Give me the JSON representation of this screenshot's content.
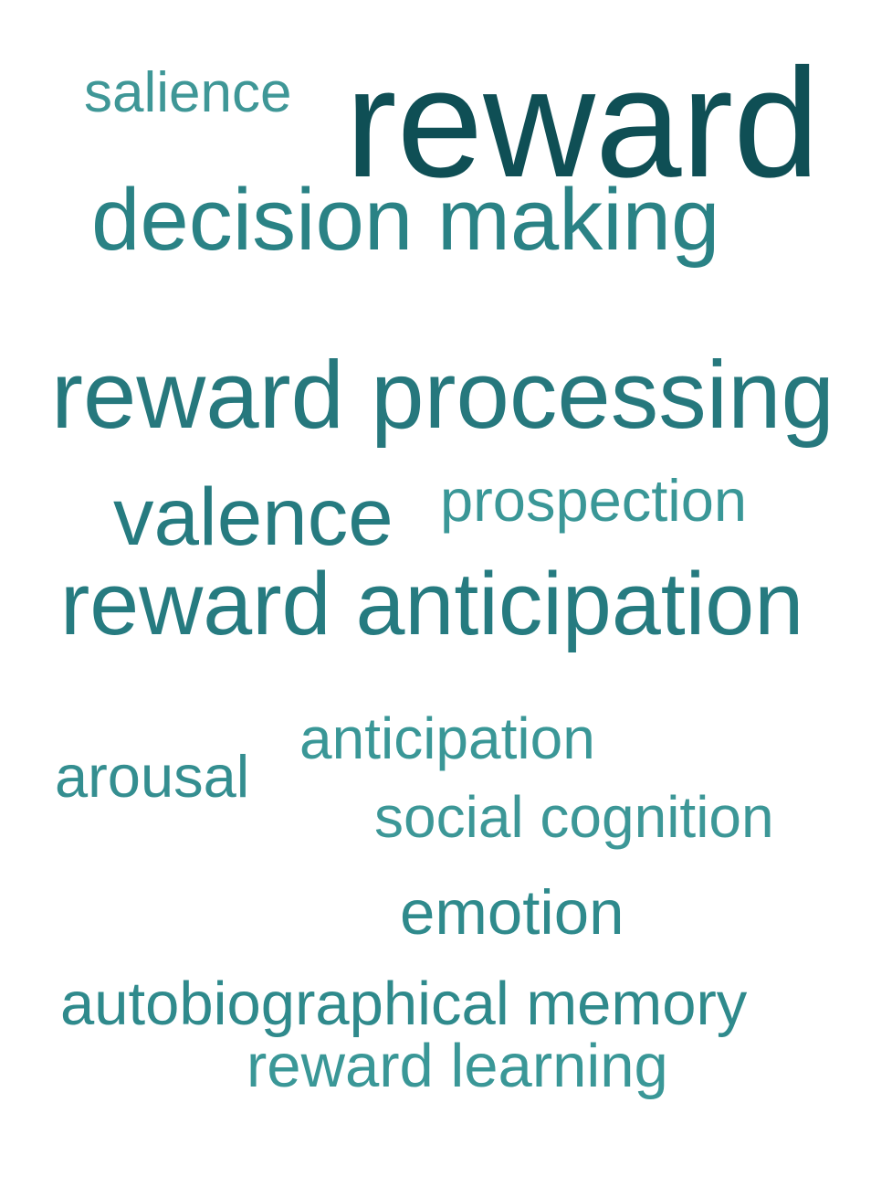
{
  "words": [
    {
      "id": "reward",
      "text": "reward",
      "color": "#0f4f55"
    },
    {
      "id": "salience",
      "text": "salience",
      "color": "#3f9797"
    },
    {
      "id": "decision-making",
      "text": "decision making",
      "color": "#2a8285"
    },
    {
      "id": "reward-processing",
      "text": "reward processing",
      "color": "#26787d"
    },
    {
      "id": "valence",
      "text": "valence",
      "color": "#267b80"
    },
    {
      "id": "prospection",
      "text": "prospection",
      "color": "#3a9797"
    },
    {
      "id": "reward-anticipation",
      "text": "reward anticipation",
      "color": "#267b80"
    },
    {
      "id": "anticipation",
      "text": "anticipation",
      "color": "#3a9797"
    },
    {
      "id": "arousal",
      "text": "arousal",
      "color": "#348e90"
    },
    {
      "id": "social-cognition",
      "text": "social cognition",
      "color": "#3c9797"
    },
    {
      "id": "emotion",
      "text": "emotion",
      "color": "#2f8a8c"
    },
    {
      "id": "autobiographical-memory",
      "text": "autobiographical memory",
      "color": "#2f8a8c"
    },
    {
      "id": "reward-learning",
      "text": "reward learning",
      "color": "#3a9797"
    }
  ]
}
